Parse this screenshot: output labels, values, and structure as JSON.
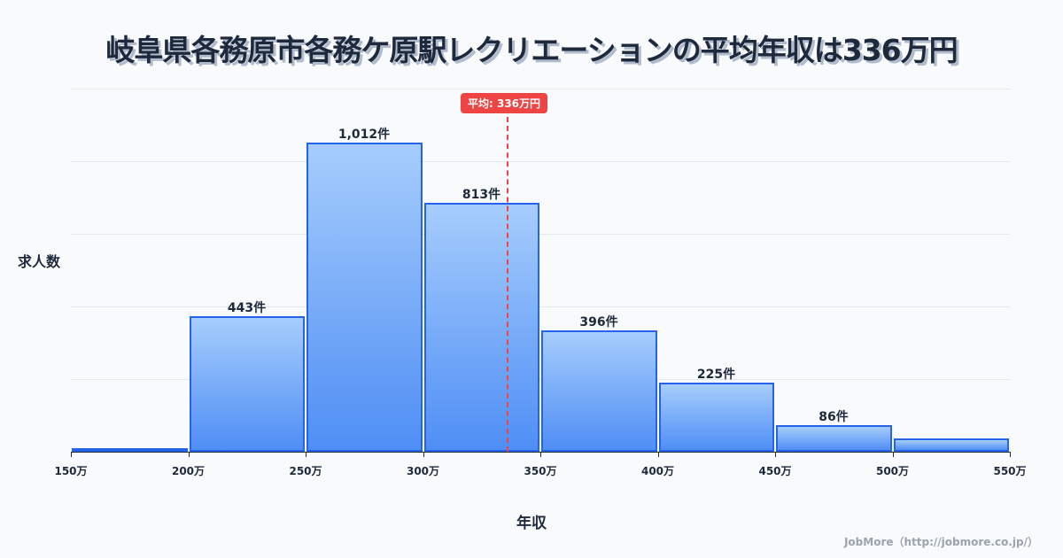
{
  "title": "岐阜県各務原市各務ケ原駅レクリエーションの平均年収は336万円",
  "mean_badge": "平均: 336万円",
  "ylabel": "求人数",
  "xlabel": "年収",
  "footer": "JobMore（http://jobmore.co.jp/）",
  "colors": {
    "bar_fill_top": "#a6cdfc",
    "bar_fill_bottom": "#4f8ef5",
    "bar_border": "#2563eb",
    "mean_line": "#ef4444",
    "text": "#1e293b"
  },
  "chart_data": {
    "type": "bar",
    "title": "岐阜県各務原市各務ケ原駅レクリエーションの平均年収は336万円",
    "xlabel": "年収",
    "ylabel": "求人数",
    "categories": [
      "150-200万",
      "200-250万",
      "250-300万",
      "300-350万",
      "350-400万",
      "400-450万",
      "450-500万",
      "500-550万"
    ],
    "values": [
      3,
      443,
      1012,
      813,
      396,
      225,
      86,
      43
    ],
    "data_labels": [
      "",
      "443件",
      "1,012件",
      "813件",
      "396件",
      "225件",
      "86件",
      ""
    ],
    "x_ticks": [
      "150万",
      "200万",
      "250万",
      "300万",
      "350万",
      "400万",
      "450万",
      "500万",
      "550万"
    ],
    "mean": 336,
    "mean_label": "平均: 336万円",
    "grid": true,
    "ylim": [
      0,
      1188
    ]
  }
}
